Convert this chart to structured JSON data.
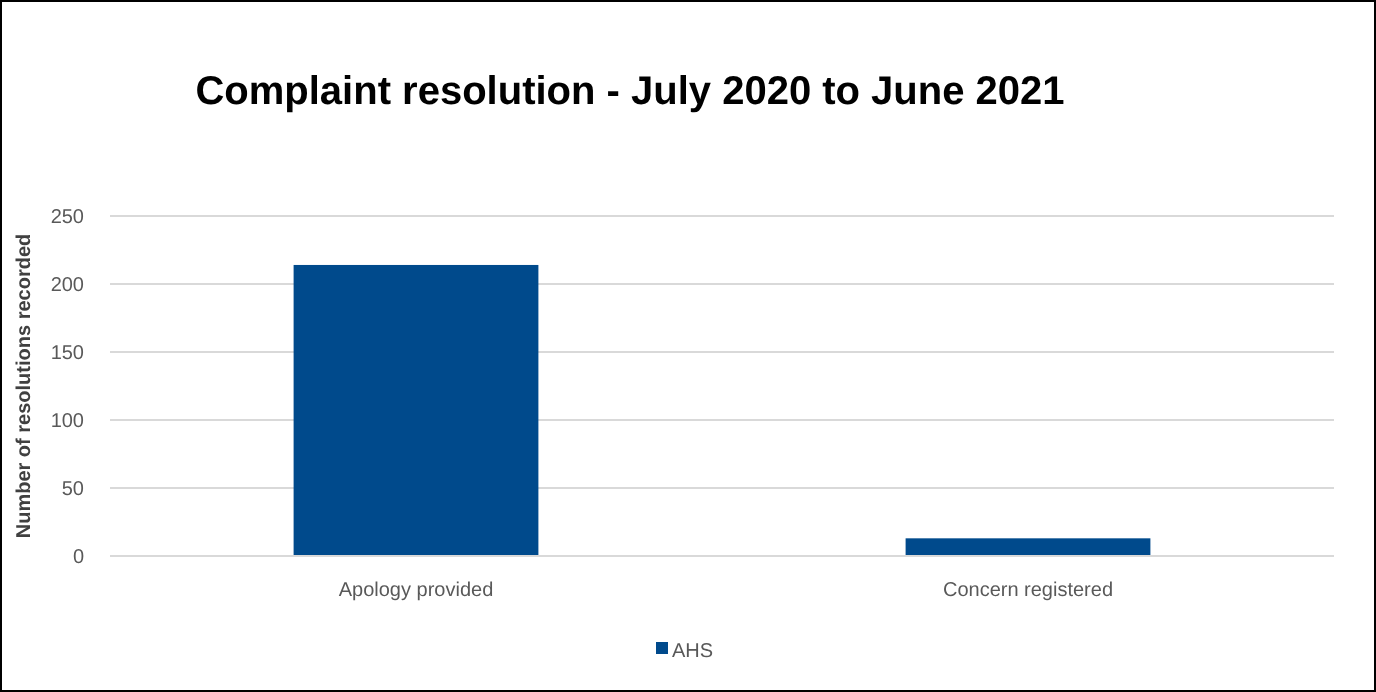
{
  "chart_data": {
    "type": "bar",
    "title": "Complaint resolution - July 2020 to June 2021",
    "ylabel": "Number of resolutions recorded",
    "categories": [
      "Apology provided",
      "Concern registered"
    ],
    "series": [
      {
        "name": "AHS",
        "color": "#004a8c",
        "values": [
          214,
          13
        ]
      }
    ],
    "ylim": [
      0,
      250
    ],
    "yticks": [
      0,
      50,
      100,
      150,
      200,
      250
    ],
    "grid": "y",
    "legend": "bottom"
  }
}
